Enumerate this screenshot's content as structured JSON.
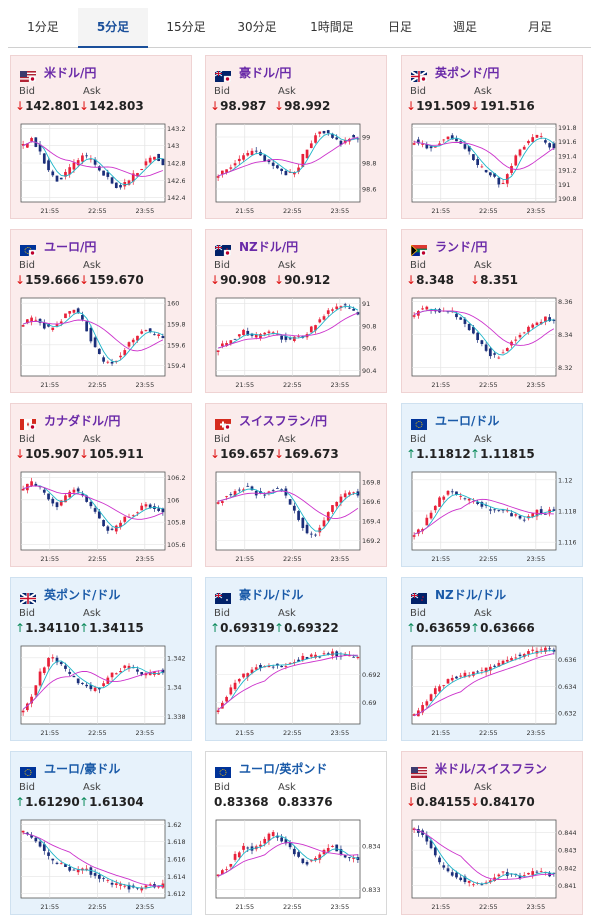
{
  "tabs": [
    "1分足",
    "5分足",
    "15分足",
    "30分足",
    "1時間足",
    "日足",
    "週足",
    "月足"
  ],
  "active_tab": "5分足",
  "labels": {
    "bid": "Bid",
    "ask": "Ask"
  },
  "time_labels": [
    "21:55",
    "22:55",
    "23:55"
  ],
  "colors": {
    "bull": "#e8213a",
    "bear": "#1b2f7a",
    "ma_fast": "#1fb6c9",
    "ma_slow": "#cc33cc",
    "card_down": "#fbecec",
    "card_up": "#e7f2fb"
  },
  "cards": [
    {
      "pair": "米ドル/円",
      "flag": "us-jp-flag",
      "dir": "down",
      "bid": "142.801",
      "ask": "142.803",
      "yticks": [
        "143.2",
        "143",
        "142.8",
        "142.6",
        "142.4"
      ],
      "chart_data": {
        "type": "line",
        "series": [
          {
            "values": [
              143.0,
              143.1,
              142.9,
              142.7,
              142.6,
              142.7,
              142.8,
              142.9,
              142.8,
              142.7,
              142.6,
              142.5,
              142.6,
              142.7,
              142.8,
              142.9,
              142.8
            ]
          }
        ],
        "ylim": [
          142.35,
          143.25
        ]
      }
    },
    {
      "pair": "豪ドル/円",
      "flag": "au-jp-flag",
      "dir": "down",
      "bid": "98.987",
      "ask": "98.992",
      "yticks": [
        "99",
        "98.8",
        "98.6"
      ],
      "chart_data": {
        "type": "line",
        "series": [
          {
            "values": [
              98.7,
              98.75,
              98.8,
              98.85,
              98.9,
              98.85,
              98.8,
              98.75,
              98.7,
              98.75,
              98.9,
              99.0,
              99.05,
              99.0,
              98.95,
              99.0,
              98.99
            ]
          }
        ],
        "ylim": [
          98.5,
          99.1
        ]
      }
    },
    {
      "pair": "英ポンド/円",
      "flag": "gb-jp-flag",
      "dir": "down",
      "bid": "191.509",
      "ask": "191.516",
      "yticks": [
        "191.8",
        "191.6",
        "191.4",
        "191.2",
        "191",
        "190.8"
      ],
      "chart_data": {
        "type": "line",
        "series": [
          {
            "values": [
              191.6,
              191.55,
              191.5,
              191.6,
              191.7,
              191.6,
              191.5,
              191.3,
              191.2,
              191.1,
              191.0,
              191.2,
              191.5,
              191.6,
              191.7,
              191.6,
              191.5
            ]
          }
        ],
        "ylim": [
          190.75,
          191.85
        ]
      }
    },
    {
      "pair": "ユーロ/円",
      "flag": "eu-jp-flag",
      "dir": "down",
      "bid": "159.666",
      "ask": "159.670",
      "yticks": [
        "160",
        "159.8",
        "159.6",
        "159.4"
      ],
      "chart_data": {
        "type": "line",
        "series": [
          {
            "values": [
              159.8,
              159.85,
              159.8,
              159.75,
              159.8,
              159.9,
              159.95,
              159.8,
              159.6,
              159.45,
              159.4,
              159.5,
              159.6,
              159.7,
              159.75,
              159.7,
              159.67
            ]
          }
        ],
        "ylim": [
          159.3,
          160.05
        ]
      }
    },
    {
      "pair": "NZドル/円",
      "flag": "nz-jp-flag",
      "dir": "down",
      "bid": "90.908",
      "ask": "90.912",
      "yticks": [
        "91",
        "90.8",
        "90.6",
        "90.4"
      ],
      "chart_data": {
        "type": "line",
        "series": [
          {
            "values": [
              90.6,
              90.65,
              90.7,
              90.75,
              90.7,
              90.72,
              90.75,
              90.7,
              90.68,
              90.7,
              90.72,
              90.8,
              90.9,
              90.95,
              91.0,
              90.95,
              90.91
            ]
          }
        ],
        "ylim": [
          90.35,
          91.05
        ]
      }
    },
    {
      "pair": "ランド/円",
      "flag": "za-jp-flag",
      "dir": "down",
      "bid": "8.348",
      "ask": "8.351",
      "yticks": [
        "8.36",
        "8.34",
        "8.32"
      ],
      "chart_data": {
        "type": "line",
        "series": [
          {
            "values": [
              8.352,
              8.356,
              8.355,
              8.353,
              8.355,
              8.35,
              8.345,
              8.34,
              8.332,
              8.326,
              8.328,
              8.335,
              8.34,
              8.344,
              8.347,
              8.35,
              8.348
            ]
          }
        ],
        "ylim": [
          8.315,
          8.362
        ]
      }
    },
    {
      "pair": "カナダドル/円",
      "flag": "ca-jp-flag",
      "dir": "down",
      "bid": "105.907",
      "ask": "105.911",
      "yticks": [
        "106.2",
        "106",
        "105.8",
        "105.6"
      ],
      "chart_data": {
        "type": "line",
        "series": [
          {
            "values": [
              106.1,
              106.15,
              106.1,
              106.0,
              105.95,
              106.05,
              106.1,
              106.0,
              105.9,
              105.8,
              105.7,
              105.8,
              105.85,
              105.9,
              105.95,
              105.92,
              105.91
            ]
          }
        ],
        "ylim": [
          105.55,
          106.25
        ]
      }
    },
    {
      "pair": "スイスフラン/円",
      "flag": "ch-jp-flag",
      "dir": "down",
      "bid": "169.657",
      "ask": "169.673",
      "yticks": [
        "169.8",
        "169.6",
        "169.4",
        "169.2"
      ],
      "chart_data": {
        "type": "line",
        "series": [
          {
            "values": [
              169.6,
              169.65,
              169.7,
              169.75,
              169.7,
              169.65,
              169.7,
              169.75,
              169.6,
              169.45,
              169.3,
              169.25,
              169.4,
              169.55,
              169.65,
              169.7,
              169.66
            ]
          }
        ],
        "ylim": [
          169.1,
          169.9
        ]
      }
    },
    {
      "pair": "ユーロ/ドル",
      "flag": "eu-us-flag",
      "dir": "up",
      "bid": "1.11812",
      "ask": "1.11815",
      "yticks": [
        "1.12",
        "1.118",
        "1.116"
      ],
      "chart_data": {
        "type": "line",
        "series": [
          {
            "values": [
              1.1165,
              1.117,
              1.118,
              1.1188,
              1.1192,
              1.119,
              1.1187,
              1.1185,
              1.1183,
              1.118,
              1.1182,
              1.1178,
              1.1176,
              1.1175,
              1.118,
              1.1179,
              1.1181
            ]
          }
        ],
        "ylim": [
          1.1155,
          1.1205
        ]
      }
    },
    {
      "pair": "英ポンド/ドル",
      "flag": "gb-us-flag",
      "dir": "up",
      "bid": "1.34110",
      "ask": "1.34115",
      "yticks": [
        "1.342",
        "1.34",
        "1.338"
      ],
      "chart_data": {
        "type": "line",
        "series": [
          {
            "values": [
              1.3385,
              1.3395,
              1.341,
              1.342,
              1.3418,
              1.341,
              1.3405,
              1.3402,
              1.3398,
              1.34,
              1.3408,
              1.3412,
              1.3415,
              1.3412,
              1.3408,
              1.341,
              1.3411
            ]
          }
        ],
        "ylim": [
          1.3375,
          1.3428
        ]
      }
    },
    {
      "pair": "豪ドル/ドル",
      "flag": "au-us-flag",
      "dir": "up",
      "bid": "0.69319",
      "ask": "0.69322",
      "yticks": [
        "0.692",
        "0.69"
      ],
      "chart_data": {
        "type": "line",
        "series": [
          {
            "values": [
              0.6895,
              0.6905,
              0.6915,
              0.692,
              0.6925,
              0.6926,
              0.6927,
              0.6926,
              0.6928,
              0.693,
              0.6932,
              0.6933,
              0.6934,
              0.6935,
              0.6934,
              0.6933,
              0.6932
            ]
          }
        ],
        "ylim": [
          0.6885,
          0.694
        ]
      }
    },
    {
      "pair": "NZドル/ドル",
      "flag": "nz-us-flag",
      "dir": "up",
      "bid": "0.63659",
      "ask": "0.63666",
      "yticks": [
        "0.636",
        "0.634",
        "0.632"
      ],
      "chart_data": {
        "type": "line",
        "series": [
          {
            "values": [
              0.6318,
              0.6325,
              0.6335,
              0.634,
              0.6345,
              0.6347,
              0.6349,
              0.635,
              0.6352,
              0.6355,
              0.6358,
              0.636,
              0.6363,
              0.6365,
              0.6366,
              0.6367,
              0.6366
            ]
          }
        ],
        "ylim": [
          0.6312,
          0.637
        ]
      }
    },
    {
      "pair": "ユーロ/豪ドル",
      "flag": "eu-au-flag",
      "dir": "up",
      "bid": "1.61290",
      "ask": "1.61304",
      "yticks": [
        "1.62",
        "1.618",
        "1.616",
        "1.614",
        "1.612"
      ],
      "chart_data": {
        "type": "line",
        "series": [
          {
            "values": [
              1.619,
              1.6185,
              1.6175,
              1.616,
              1.6155,
              1.615,
              1.6145,
              1.615,
              1.6142,
              1.6138,
              1.6132,
              1.613,
              1.6128,
              1.6125,
              1.6128,
              1.613,
              1.6129
            ]
          }
        ],
        "ylim": [
          1.6115,
          1.6205
        ]
      }
    },
    {
      "pair": "ユーロ/英ポンド",
      "flag": "eu-gb-flag",
      "dir": "flat",
      "bid": "0.83368",
      "ask": "0.83376",
      "yticks": [
        "0.834",
        "0.833"
      ],
      "chart_data": {
        "type": "line",
        "series": [
          {
            "values": [
              0.8333,
              0.8335,
              0.8338,
              0.834,
              0.8339,
              0.8341,
              0.8343,
              0.8342,
              0.834,
              0.8338,
              0.8336,
              0.8337,
              0.8339,
              0.834,
              0.8338,
              0.8337,
              0.8337
            ]
          }
        ],
        "ylim": [
          0.8328,
          0.8346
        ]
      }
    },
    {
      "pair": "米ドル/スイスフラン",
      "flag": "us-ch-flag",
      "dir": "down",
      "bid": "0.84155",
      "ask": "0.84170",
      "yticks": [
        "0.844",
        "0.843",
        "0.842",
        "0.841"
      ],
      "chart_data": {
        "type": "line",
        "series": [
          {
            "values": [
              0.8442,
              0.8438,
              0.843,
              0.8422,
              0.8418,
              0.8415,
              0.8412,
              0.841,
              0.8412,
              0.8414,
              0.8418,
              0.8416,
              0.8414,
              0.8416,
              0.8418,
              0.8417,
              0.8416
            ]
          }
        ],
        "ylim": [
          0.8403,
          0.8447
        ]
      }
    }
  ]
}
